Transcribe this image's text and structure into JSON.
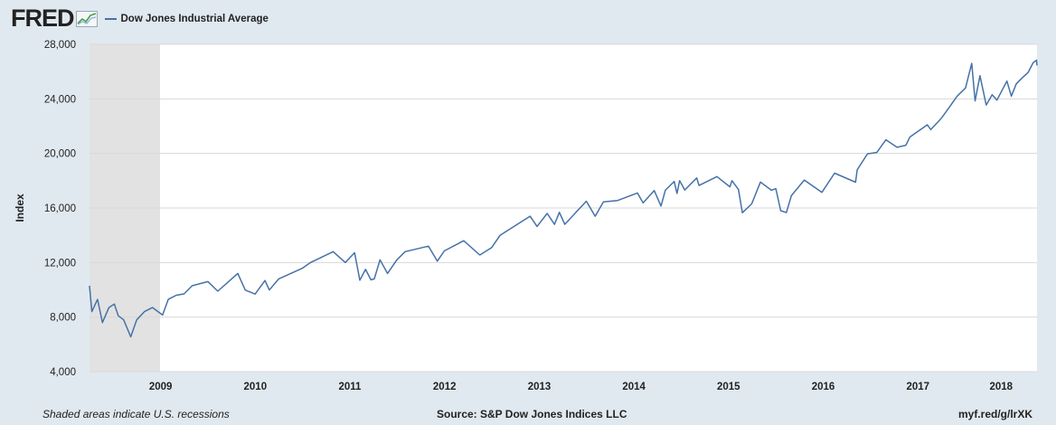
{
  "header": {
    "logo_text": "FRED",
    "logo_icon": "fred-graph-icon",
    "series_label": "Dow Jones Industrial Average"
  },
  "colors": {
    "series": "#4572a7",
    "recession": "#e2e2e2",
    "plot_bg": "#ffffff",
    "page_bg": "#e1e9f0",
    "grid": "#d8d8d8"
  },
  "footer": {
    "note": "Shaded areas indicate U.S. recessions",
    "source": "Source: S&P Dow Jones Indices LLC",
    "link": "myf.red/g/lrXK"
  },
  "chart_data": {
    "type": "line",
    "ylabel": "Index",
    "xlabel": "",
    "ylim": [
      4000,
      28000
    ],
    "xlim": [
      "2008-10-01",
      "2018-10-05"
    ],
    "y_ticks": [
      4000,
      8000,
      12000,
      16000,
      20000,
      24000,
      28000
    ],
    "y_tick_labels": [
      "4,000",
      "8,000",
      "12,000",
      "16,000",
      "20,000",
      "24,000",
      "28,000"
    ],
    "x_ticks": [
      "2009",
      "2010",
      "2011",
      "2012",
      "2013",
      "2014",
      "2015",
      "2016",
      "2017",
      "2018"
    ],
    "grid": "horizontal",
    "legend": "top-left",
    "recessions": [
      {
        "start": "2008-10-01",
        "end": "2009-06-30"
      }
    ],
    "series": [
      {
        "name": "Dow Jones Industrial Average",
        "x": [
          "2008-10-01",
          "2008-10-10",
          "2008-11-01",
          "2008-11-20",
          "2008-12-15",
          "2009-01-05",
          "2009-01-20",
          "2009-02-10",
          "2009-03-09",
          "2009-04-01",
          "2009-05-01",
          "2009-06-01",
          "2009-07-10",
          "2009-08-01",
          "2009-09-01",
          "2009-10-01",
          "2009-11-01",
          "2010-01-01",
          "2010-02-08",
          "2010-04-26",
          "2010-05-25",
          "2010-07-02",
          "2010-08-09",
          "2010-08-26",
          "2010-10-01",
          "2010-12-31",
          "2011-02-01",
          "2011-04-29",
          "2011-06-15",
          "2011-07-21",
          "2011-08-10",
          "2011-09-01",
          "2011-09-22",
          "2011-10-05",
          "2011-10-27",
          "2011-11-25",
          "2011-12-31",
          "2012-02-01",
          "2012-05-01",
          "2012-06-04",
          "2012-07-01",
          "2012-09-14",
          "2012-11-15",
          "2012-12-31",
          "2013-02-01",
          "2013-05-28",
          "2013-06-24",
          "2013-08-02",
          "2013-08-30",
          "2013-09-18",
          "2013-10-09",
          "2013-12-31",
          "2014-02-03",
          "2014-03-07",
          "2014-05-01",
          "2014-07-16",
          "2014-08-07",
          "2014-09-19",
          "2014-10-15",
          "2014-11-01",
          "2014-12-05",
          "2014-12-16",
          "2014-12-26",
          "2015-01-15",
          "2015-03-02",
          "2015-03-11",
          "2015-05-19",
          "2015-07-08",
          "2015-07-16",
          "2015-08-10",
          "2015-08-25",
          "2015-09-30",
          "2015-11-03",
          "2015-12-15",
          "2016-01-01",
          "2016-01-20",
          "2016-02-11",
          "2016-03-01",
          "2016-04-20",
          "2016-06-27",
          "2016-08-15",
          "2016-11-04",
          "2016-11-10",
          "2016-12-20",
          "2017-01-25",
          "2017-03-01",
          "2017-04-13",
          "2017-05-17",
          "2017-06-01",
          "2017-08-08",
          "2017-08-21",
          "2017-09-15",
          "2017-10-02",
          "2017-11-01",
          "2017-12-01",
          "2018-01-02",
          "2018-01-26",
          "2018-02-08",
          "2018-02-27",
          "2018-03-23",
          "2018-04-15",
          "2018-05-03",
          "2018-06-11",
          "2018-06-28",
          "2018-07-17",
          "2018-08-07",
          "2018-09-01",
          "2018-09-20",
          "2018-10-03",
          "2018-10-05"
        ],
        "values": [
          10300,
          8400,
          9300,
          7600,
          8700,
          8950,
          8100,
          7800,
          6550,
          7800,
          8400,
          8700,
          8150,
          9300,
          9600,
          9700,
          10300,
          10600,
          9900,
          11200,
          9980,
          9690,
          10680,
          9985,
          10800,
          11580,
          12000,
          12800,
          12000,
          12720,
          10700,
          11500,
          10730,
          10800,
          12200,
          11200,
          12200,
          12800,
          13200,
          12100,
          12850,
          13600,
          12550,
          13100,
          14000,
          15400,
          14650,
          15600,
          14800,
          15680,
          14800,
          16500,
          15400,
          16450,
          16550,
          17100,
          16370,
          17280,
          16140,
          17300,
          17950,
          17070,
          18000,
          17320,
          18200,
          17650,
          18300,
          17550,
          18000,
          17350,
          15650,
          16300,
          17900,
          17300,
          17420,
          15800,
          15660,
          16900,
          18050,
          17150,
          18550,
          17890,
          18800,
          19970,
          20070,
          21000,
          20450,
          20600,
          21200,
          22100,
          21750,
          22250,
          22600,
          23400,
          24200,
          24800,
          26600,
          23850,
          25700,
          23550,
          24300,
          23900,
          25300,
          24200,
          25100,
          25500,
          25950,
          26650,
          26830,
          26450
        ]
      }
    ]
  }
}
